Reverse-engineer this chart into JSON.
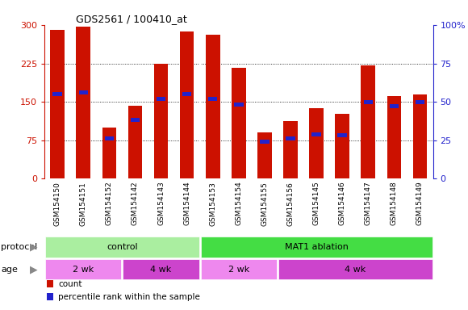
{
  "title": "GDS2561 / 100410_at",
  "samples": [
    "GSM154150",
    "GSM154151",
    "GSM154152",
    "GSM154142",
    "GSM154143",
    "GSM154144",
    "GSM154153",
    "GSM154154",
    "GSM154155",
    "GSM154156",
    "GSM154145",
    "GSM154146",
    "GSM154147",
    "GSM154148",
    "GSM154149"
  ],
  "count_values": [
    290,
    297,
    100,
    142,
    225,
    287,
    282,
    217,
    90,
    113,
    138,
    127,
    222,
    162,
    165
  ],
  "percentile_values": [
    55,
    56,
    26,
    38,
    52,
    55,
    52,
    48,
    24,
    26,
    29,
    28,
    50,
    47,
    50
  ],
  "bar_color": "#cc1100",
  "pct_color": "#2222cc",
  "ylim_left": [
    0,
    300
  ],
  "ylim_right": [
    0,
    100
  ],
  "yticks_left": [
    0,
    75,
    150,
    225,
    300
  ],
  "ytick_labels_left": [
    "0",
    "75",
    "150",
    "225",
    "300"
  ],
  "yticks_right": [
    0,
    25,
    50,
    75,
    100
  ],
  "ytick_labels_right": [
    "0",
    "25",
    "50",
    "75",
    "100%"
  ],
  "gridlines_at": [
    75,
    150,
    225
  ],
  "protocol_groups": [
    {
      "label": "control",
      "start": 0,
      "end": 6,
      "color": "#aaeea0"
    },
    {
      "label": "MAT1 ablation",
      "start": 6,
      "end": 15,
      "color": "#44dd44"
    }
  ],
  "age_groups": [
    {
      "label": "2 wk",
      "start": 0,
      "end": 3,
      "color": "#ee88ee"
    },
    {
      "label": "4 wk",
      "start": 3,
      "end": 6,
      "color": "#cc44cc"
    },
    {
      "label": "2 wk",
      "start": 6,
      "end": 9,
      "color": "#ee88ee"
    },
    {
      "label": "4 wk",
      "start": 9,
      "end": 15,
      "color": "#cc44cc"
    }
  ],
  "ylabel_left_color": "#cc1100",
  "ylabel_right_color": "#2222cc",
  "tick_area_color": "#c8c8c8",
  "legend_items": [
    {
      "label": "count",
      "color": "#cc1100"
    },
    {
      "label": "percentile rank within the sample",
      "color": "#2222cc"
    }
  ]
}
